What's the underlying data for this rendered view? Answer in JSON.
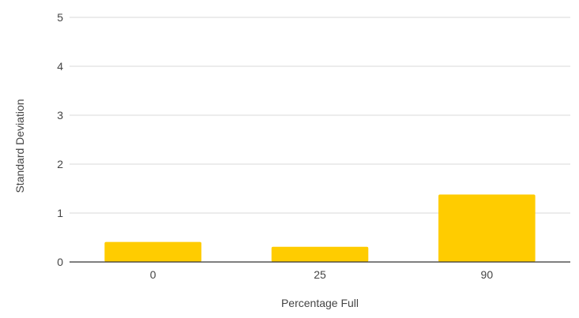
{
  "chart_data": {
    "type": "bar",
    "categories": [
      "0",
      "25",
      "90"
    ],
    "values": [
      0.41,
      0.31,
      1.38
    ],
    "title": "",
    "xlabel": "Percentage Full",
    "ylabel": "Standard Deviation",
    "ylim": [
      0,
      5
    ],
    "yticks": [
      "0",
      "1",
      "2",
      "3",
      "4",
      "5"
    ],
    "grid": true,
    "legend": "none",
    "bar_color": "#FFCC00",
    "grid_color": "#D9D9D9",
    "axis_color": "#333333"
  }
}
